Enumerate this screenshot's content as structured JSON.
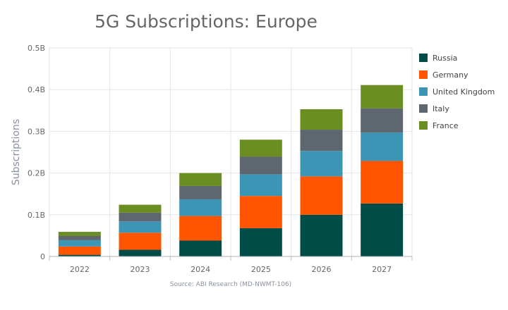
{
  "chart_data": {
    "type": "bar",
    "stacked": true,
    "title": "5G Subscriptions: Europe",
    "xlabel": "",
    "ylabel": "Subscriptions",
    "source": "Source: ABI Research (MD-NWMT-106)",
    "categories": [
      "2022",
      "2023",
      "2024",
      "2025",
      "2026",
      "2027"
    ],
    "ylim": [
      0,
      500000000
    ],
    "yticks": [
      {
        "value": 0,
        "label": "0"
      },
      {
        "value": 100000000,
        "label": "0.1B"
      },
      {
        "value": 200000000,
        "label": "0.2B"
      },
      {
        "value": 300000000,
        "label": "0.3B"
      },
      {
        "value": 400000000,
        "label": "0.4B"
      },
      {
        "value": 500000000,
        "label": "0.5B"
      }
    ],
    "grid": true,
    "legend_position": "right",
    "series": [
      {
        "name": "Russia",
        "color": "#004d47",
        "values": [
          4000000,
          16000000,
          38000000,
          68000000,
          100000000,
          127000000
        ]
      },
      {
        "name": "Germany",
        "color": "#ff5500",
        "values": [
          20000000,
          41000000,
          59000000,
          77000000,
          92000000,
          102000000
        ]
      },
      {
        "name": "United Kingdom",
        "color": "#3d95b5",
        "values": [
          15000000,
          27000000,
          40000000,
          52000000,
          61000000,
          68000000
        ]
      },
      {
        "name": "Italy",
        "color": "#5e6670",
        "values": [
          10000000,
          21000000,
          32000000,
          42000000,
          51000000,
          58000000
        ]
      },
      {
        "name": "France",
        "color": "#6b8e23",
        "values": [
          10000000,
          19000000,
          31000000,
          41000000,
          49000000,
          56000000
        ]
      }
    ]
  }
}
